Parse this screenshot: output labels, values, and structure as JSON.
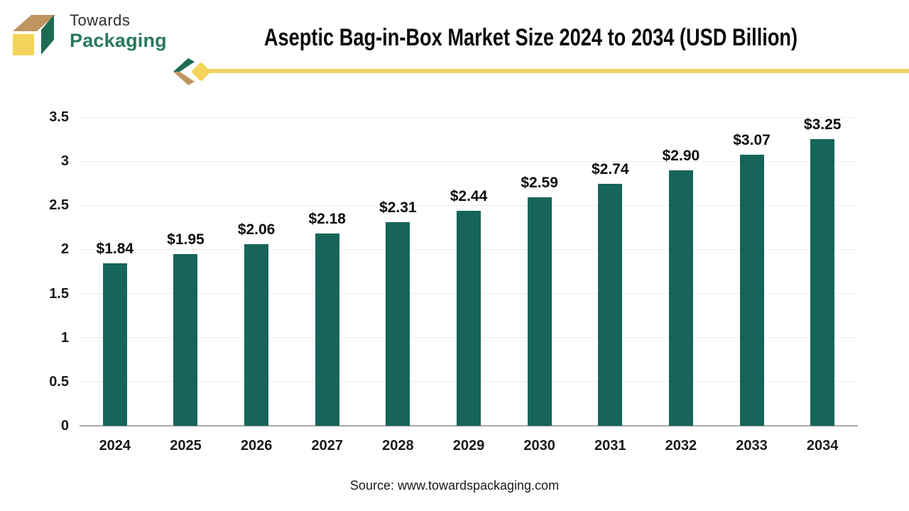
{
  "logo": {
    "line1": "Towards",
    "line2": "Packaging"
  },
  "header": {
    "title": "Aseptic Bag-in-Box Market Size 2024 to 2034 (USD Billion)"
  },
  "footer": {
    "source": "Source: www.towardspackaging.com"
  },
  "colors": {
    "bar": "#17655a",
    "grid": "#ececec",
    "baseline": "#ababab",
    "accent_yellow": "#f0d367",
    "logo_tan": "#bf9562",
    "logo_yellow": "#f5d45c",
    "logo_green": "#1d6b54",
    "logo_text_green": "#27785f"
  },
  "chart_data": {
    "type": "bar",
    "title": "Aseptic Bag-in-Box Market Size 2024 to 2034 (USD Billion)",
    "categories": [
      "2024",
      "2025",
      "2026",
      "2027",
      "2028",
      "2029",
      "2030",
      "2031",
      "2032",
      "2033",
      "2034"
    ],
    "values": [
      1.84,
      1.95,
      2.06,
      2.18,
      2.31,
      2.44,
      2.59,
      2.74,
      2.9,
      3.07,
      3.25
    ],
    "value_labels": [
      "$1.84",
      "$1.95",
      "$2.06",
      "$2.18",
      "$2.31",
      "$2.44",
      "$2.59",
      "$2.74",
      "$2.90",
      "$3.07",
      "$3.25"
    ],
    "xlabel": "",
    "ylabel": "",
    "ylim": [
      0,
      3.5
    ],
    "yticks": [
      0,
      0.5,
      1,
      1.5,
      2,
      2.5,
      3,
      3.5
    ],
    "grid": "horizontal",
    "legend": "none",
    "bar_color": "#17655a"
  }
}
